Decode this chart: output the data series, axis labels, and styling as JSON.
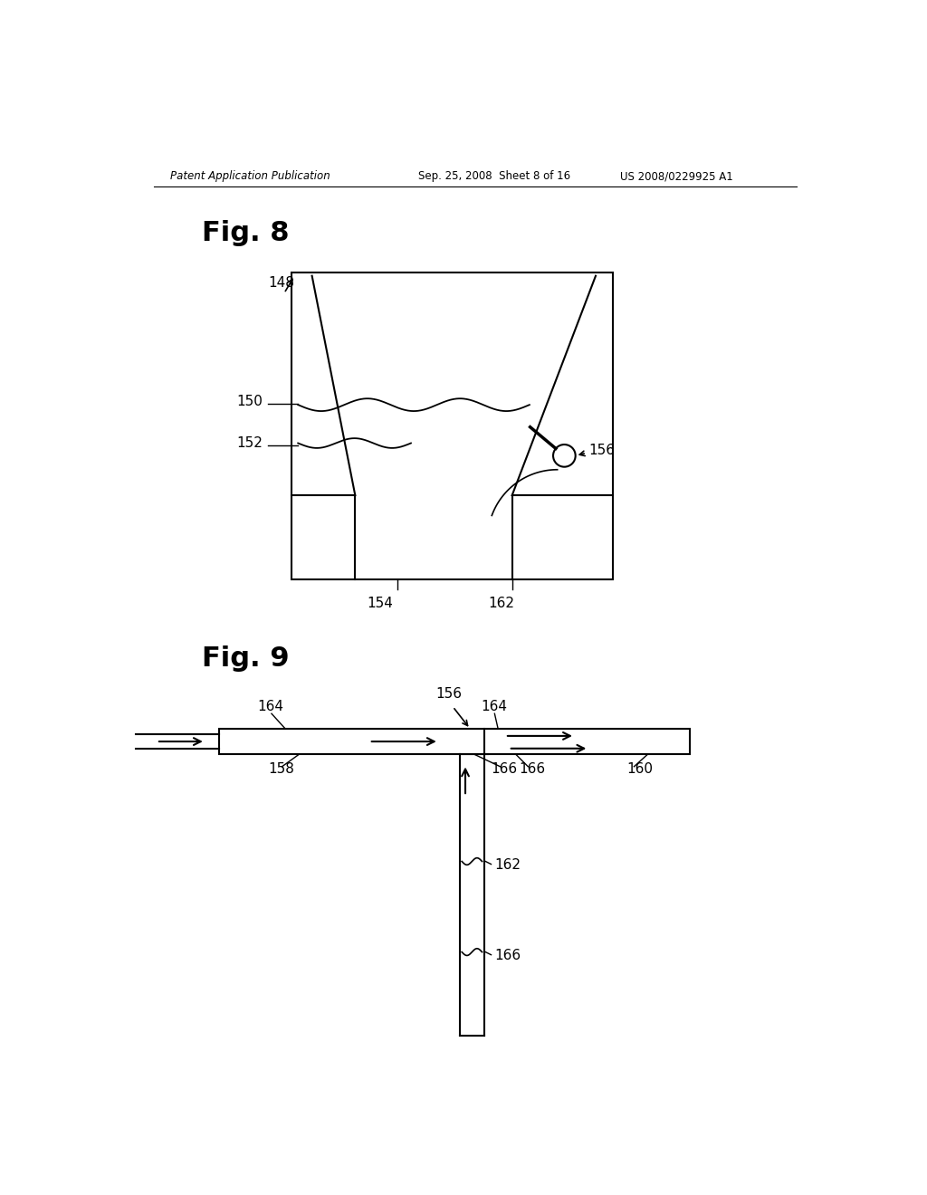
{
  "bg_color": "#ffffff",
  "header_left": "Patent Application Publication",
  "header_mid": "Sep. 25, 2008  Sheet 8 of 16",
  "header_right": "US 2008/0229925 A1",
  "fig8_title": "Fig. 8",
  "fig9_title": "Fig. 9",
  "line_color": "#000000",
  "lw": 1.5
}
